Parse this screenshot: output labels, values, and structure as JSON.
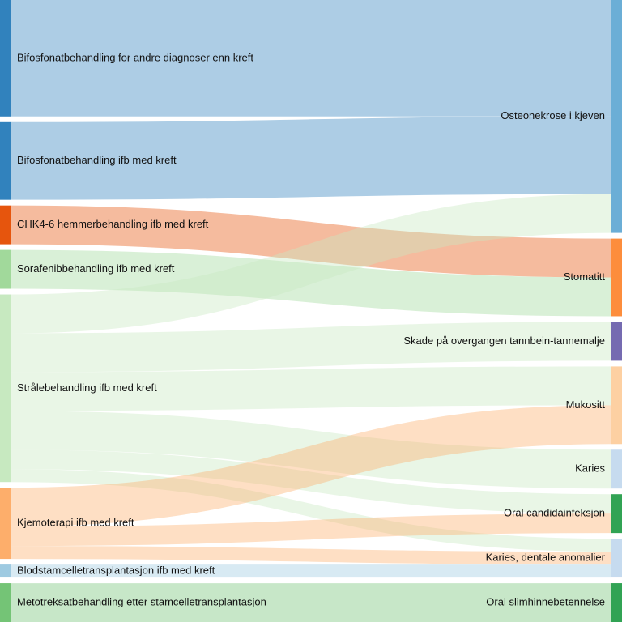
{
  "chart_data": {
    "type": "sankey",
    "nodes": [
      {
        "name": "Bifosfonatbehandling for andre diagnoser enn kreft",
        "color": "#3182bd",
        "side": "left"
      },
      {
        "name": "Bifosfonatbehandling ifb med kreft",
        "color": "#3182bd",
        "side": "left"
      },
      {
        "name": "CHK4-6 hemmerbehandling ifb med kreft",
        "color": "#e6550d",
        "side": "left"
      },
      {
        "name": "Sorafenibbehandling ifb med kreft",
        "color": "#a1d99b",
        "side": "left"
      },
      {
        "name": "Strålebehandling ifb med kreft",
        "color": "#c7e9c0",
        "side": "left"
      },
      {
        "name": "Kjemoterapi ifb med kreft",
        "color": "#fdae6b",
        "side": "left"
      },
      {
        "name": "Blodstamcelletransplantasjon ifb med kreft",
        "color": "#9ecae1",
        "side": "left"
      },
      {
        "name": "Metotreksatbehandling etter stamcelletransplantasjon",
        "color": "#74c476",
        "side": "left"
      },
      {
        "name": "Osteonekrose i kjeven",
        "color": "#6baed6",
        "side": "right"
      },
      {
        "name": "Stomatitt",
        "color": "#fd8d3c",
        "side": "right"
      },
      {
        "name": "Skade på overgangen tannbein-tannemalje",
        "color": "#756bb1",
        "side": "right"
      },
      {
        "name": "Mukositt",
        "color": "#fdd0a2",
        "side": "right"
      },
      {
        "name": "Karies",
        "color": "#c6dbef",
        "side": "right"
      },
      {
        "name": "Oral candidainfeksjon",
        "color": "#31a354",
        "side": "right"
      },
      {
        "name": "Karies, dentale anomalier",
        "color": "#c6dbef",
        "side": "right"
      },
      {
        "name": "Oral slimhinnebetennelse",
        "color": "#31a354",
        "side": "right"
      }
    ],
    "links": [
      {
        "source": 0,
        "target": 8,
        "value": 18
      },
      {
        "source": 1,
        "target": 8,
        "value": 12
      },
      {
        "source": 2,
        "target": 9,
        "value": 6
      },
      {
        "source": 3,
        "target": 9,
        "value": 6
      },
      {
        "source": 4,
        "target": 8,
        "value": 6
      },
      {
        "source": 4,
        "target": 10,
        "value": 6
      },
      {
        "source": 4,
        "target": 11,
        "value": 6
      },
      {
        "source": 4,
        "target": 12,
        "value": 6
      },
      {
        "source": 4,
        "target": 13,
        "value": 3
      },
      {
        "source": 4,
        "target": 14,
        "value": 2
      },
      {
        "source": 5,
        "target": 11,
        "value": 6
      },
      {
        "source": 5,
        "target": 13,
        "value": 3
      },
      {
        "source": 5,
        "target": 14,
        "value": 2
      },
      {
        "source": 6,
        "target": 14,
        "value": 2
      },
      {
        "source": 7,
        "target": 15,
        "value": 6
      }
    ]
  }
}
